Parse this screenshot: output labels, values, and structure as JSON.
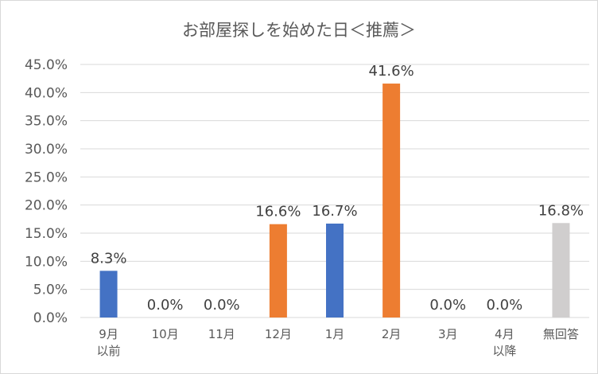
{
  "chart_data": {
    "type": "bar",
    "title": "お部屋探しを始めた日＜推薦＞",
    "xlabel": "",
    "ylabel": "",
    "categories": [
      "9月\n以前",
      "10月",
      "11月",
      "12月",
      "1月",
      "2月",
      "3月",
      "4月\n以降",
      "無回答"
    ],
    "values": [
      8.3,
      0.0,
      0.0,
      16.6,
      16.7,
      41.6,
      0.0,
      0.0,
      16.8
    ],
    "data_labels": [
      "8.3%",
      "0.0%",
      "0.0%",
      "16.6%",
      "16.7%",
      "41.6%",
      "0.0%",
      "0.0%",
      "16.8%"
    ],
    "bar_colors": [
      "#4472c4",
      "#4472c4",
      "#4472c4",
      "#ed7d31",
      "#4472c4",
      "#ed7d31",
      "#4472c4",
      "#4472c4",
      "#d0cece"
    ],
    "ylim": [
      0,
      45
    ],
    "y_ticks": [
      0,
      5,
      10,
      15,
      20,
      25,
      30,
      35,
      40,
      45
    ],
    "y_tick_labels": [
      "0.0%",
      "5.0%",
      "10.0%",
      "15.0%",
      "20.0%",
      "25.0%",
      "30.0%",
      "35.0%",
      "40.0%",
      "45.0%"
    ],
    "grid": true,
    "legend": "none"
  }
}
